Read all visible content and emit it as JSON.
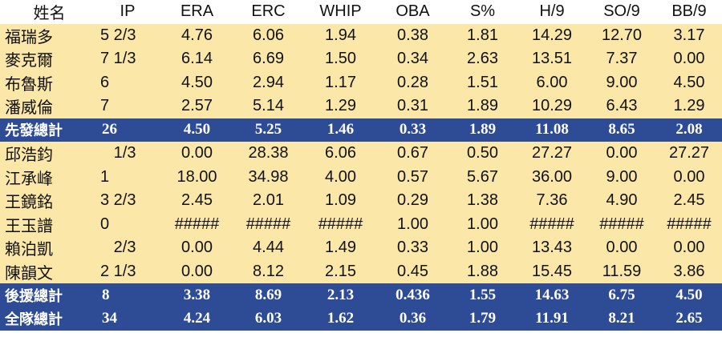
{
  "headers": [
    "姓名",
    "IP",
    "ERA",
    "ERC",
    "WHIP",
    "OBA",
    "S%",
    "H/9",
    "SO/9",
    "BB/9"
  ],
  "rows": [
    {
      "type": "player",
      "cells": [
        "福瑞多",
        "5 2/3",
        "4.76",
        "6.06",
        "1.94",
        "0.38",
        "1.81",
        "14.29",
        "12.70",
        "3.17"
      ]
    },
    {
      "type": "player",
      "cells": [
        "麥克爾",
        "7 1/3",
        "6.14",
        "6.69",
        "1.50",
        "0.34",
        "2.63",
        "13.51",
        "7.37",
        "0.00"
      ]
    },
    {
      "type": "player",
      "cells": [
        "布魯斯",
        "6",
        "4.50",
        "2.94",
        "1.17",
        "0.28",
        "1.51",
        "6.00",
        "9.00",
        "4.50"
      ]
    },
    {
      "type": "player",
      "cells": [
        "潘威倫",
        "7",
        "2.57",
        "5.14",
        "1.29",
        "0.31",
        "1.89",
        "10.29",
        "6.43",
        "1.29"
      ]
    },
    {
      "type": "total",
      "cells": [
        "先發總計",
        "26",
        "4.50",
        "5.25",
        "1.46",
        "0.33",
        "1.89",
        "11.08",
        "8.65",
        "2.08"
      ]
    },
    {
      "type": "player",
      "cells": [
        "邱浩鈞",
        "   1/3",
        "0.00",
        "28.38",
        "6.06",
        "0.67",
        "0.50",
        "27.27",
        "0.00",
        "27.27"
      ]
    },
    {
      "type": "player",
      "cells": [
        "江承峰",
        "1",
        "18.00",
        "34.98",
        "4.00",
        "0.57",
        "5.67",
        "36.00",
        "9.00",
        "0.00"
      ]
    },
    {
      "type": "player",
      "cells": [
        "王鏡銘",
        "3 2/3",
        "2.45",
        "2.01",
        "1.09",
        "0.29",
        "1.38",
        "7.36",
        "4.90",
        "2.45"
      ]
    },
    {
      "type": "player",
      "cells": [
        "王玉譜",
        "0",
        "#####",
        "#####",
        "#####",
        "1.00",
        "1.00",
        "#####",
        "#####",
        "#####"
      ]
    },
    {
      "type": "player",
      "cells": [
        "賴泊凱",
        "   2/3",
        "0.00",
        "4.44",
        "1.49",
        "0.33",
        "1.00",
        "13.43",
        "0.00",
        "0.00"
      ]
    },
    {
      "type": "player",
      "cells": [
        "陳韻文",
        "2 1/3",
        "0.00",
        "8.12",
        "2.15",
        "0.45",
        "1.88",
        "15.45",
        "11.59",
        "3.86"
      ]
    },
    {
      "type": "total",
      "cells": [
        "後援總計",
        "8",
        "3.38",
        "8.69",
        "2.13",
        "0.436",
        "1.55",
        "14.63",
        "6.75",
        "4.50"
      ]
    },
    {
      "type": "total",
      "cells": [
        "全隊總計",
        "34",
        "4.24",
        "6.03",
        "1.62",
        "0.36",
        "1.79",
        "11.91",
        "8.21",
        "2.65"
      ]
    }
  ]
}
